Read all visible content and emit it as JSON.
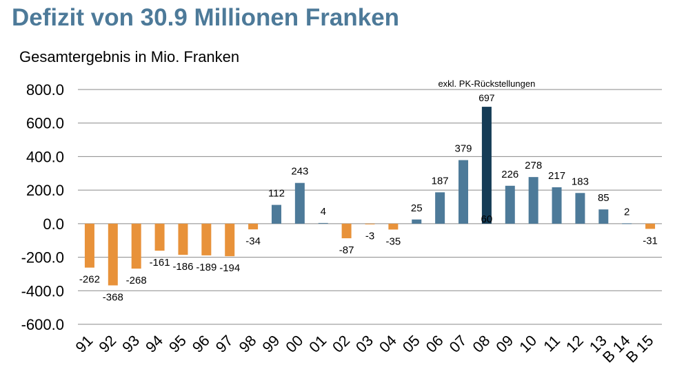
{
  "chart_data": {
    "type": "bar",
    "title": "Defizit von 30.9 Millionen Franken",
    "subtitle": "Gesamtergebnis in Mio. Franken",
    "xlabel": "",
    "ylabel": "",
    "categories": [
      "91",
      "92",
      "93",
      "94",
      "95",
      "96",
      "97",
      "98",
      "99",
      "00",
      "01",
      "02",
      "03",
      "04",
      "05",
      "06",
      "07",
      "08",
      "09",
      "10",
      "11",
      "12",
      "13",
      "B 14",
      "B 15"
    ],
    "values": [
      -262,
      -368,
      -268,
      -161,
      -186,
      -189,
      -194,
      -34,
      112,
      243,
      4,
      -87,
      -3,
      -35,
      25,
      187,
      379,
      60,
      226,
      278,
      217,
      183,
      85,
      2,
      -31
    ],
    "data_labels": [
      "-262",
      "-368",
      "-268",
      "-161",
      "-186",
      "-189",
      "-194",
      "-34",
      "112",
      "243",
      "4",
      "-87",
      "-3",
      "-35",
      "25",
      "187",
      "379",
      "60",
      "226",
      "278",
      "217",
      "183",
      "85",
      "2",
      "-31"
    ],
    "highlight": {
      "category": "08",
      "value": 697,
      "value_label": "697",
      "annotation": "exkl. PK-Rückstellungen"
    },
    "y_ticks": [
      800,
      600,
      400,
      200,
      0,
      -200,
      -400,
      -600
    ],
    "y_tick_labels": [
      "800.0",
      "600.0",
      "400.0",
      "200.0",
      "0.0",
      "-200.0",
      "-400.0",
      "-600.0"
    ],
    "ylim": [
      -600,
      800
    ],
    "grid": true,
    "colors": {
      "negative": "#e8923a",
      "positive": "#4d7a99",
      "highlight": "#153c56",
      "title": "#4d7a99",
      "grid": "#888888"
    }
  }
}
